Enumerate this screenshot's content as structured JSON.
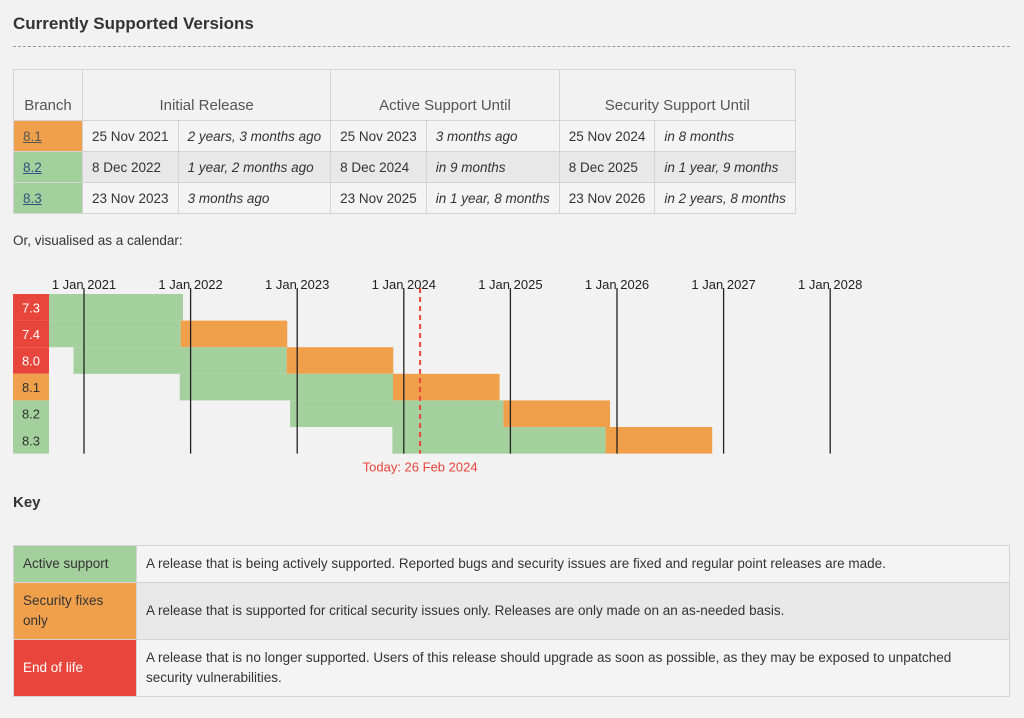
{
  "page_title": "Currently Supported Versions",
  "table": {
    "headers": {
      "branch": "Branch",
      "initial_release": "Initial Release",
      "active_support": "Active Support Until",
      "security_support": "Security Support Until"
    },
    "rows": [
      {
        "branch": "8.1",
        "status": "security",
        "initial_date": "25 Nov 2021",
        "initial_rel": "2 years, 3 months ago",
        "active_date": "25 Nov 2023",
        "active_rel": "3 months ago",
        "security_date": "25 Nov 2024",
        "security_rel": "in 8 months"
      },
      {
        "branch": "8.2",
        "status": "active",
        "initial_date": "8 Dec 2022",
        "initial_rel": "1 year, 2 months ago",
        "active_date": "8 Dec 2024",
        "active_rel": "in 9 months",
        "security_date": "8 Dec 2025",
        "security_rel": "in 1 year, 9 months"
      },
      {
        "branch": "8.3",
        "status": "active",
        "initial_date": "23 Nov 2023",
        "initial_rel": "3 months ago",
        "active_date": "23 Nov 2025",
        "active_rel": "in 1 year, 8 months",
        "security_date": "23 Nov 2026",
        "security_rel": "in 2 years, 8 months"
      }
    ]
  },
  "calendar_caption": "Or, visualised as a calendar:",
  "calendar": {
    "years": [
      "1 Jan 2021",
      "1 Jan 2022",
      "1 Jan 2023",
      "1 Jan 2024",
      "1 Jan 2025",
      "1 Jan 2026",
      "1 Jan 2027",
      "1 Jan 2028"
    ],
    "branches": [
      {
        "label": "7.3",
        "status": "eol",
        "release": "2019-11-28",
        "active_until": "2021-12-06",
        "security_until": "2021-12-06"
      },
      {
        "label": "7.4",
        "status": "eol",
        "release": "2019-11-28",
        "active_until": "2021-11-28",
        "security_until": "2022-11-28"
      },
      {
        "label": "8.0",
        "status": "eol",
        "release": "2020-11-26",
        "active_until": "2022-11-26",
        "security_until": "2023-11-26"
      },
      {
        "label": "8.1",
        "status": "security",
        "release": "2021-11-25",
        "active_until": "2023-11-25",
        "security_until": "2024-11-25"
      },
      {
        "label": "8.2",
        "status": "active",
        "release": "2022-12-08",
        "active_until": "2024-12-08",
        "security_until": "2025-12-08"
      },
      {
        "label": "8.3",
        "status": "active",
        "release": "2023-11-23",
        "active_until": "2025-11-23",
        "security_until": "2026-11-23"
      }
    ],
    "today": "2024-02-26",
    "today_label": "Today: 26 Feb 2024"
  },
  "colors": {
    "active": "#a3d09c",
    "security": "#f0a04b",
    "eol": "#e8453c",
    "today_line": "#e8453c"
  },
  "key": {
    "heading": "Key",
    "items": [
      {
        "status": "active",
        "label": "Active support",
        "description": "A release that is being actively supported. Reported bugs and security issues are fixed and regular point releases are made."
      },
      {
        "status": "security",
        "label": "Security fixes only",
        "description": "A release that is supported for critical security issues only. Releases are only made on an as-needed basis."
      },
      {
        "status": "eol",
        "label": "End of life",
        "description": "A release that is no longer supported. Users of this release should upgrade as soon as possible, as they may be exposed to unpatched security vulnerabilities."
      }
    ]
  }
}
